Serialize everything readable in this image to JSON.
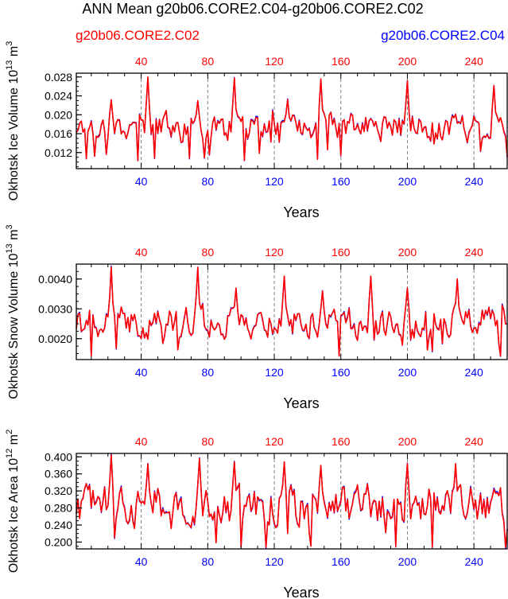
{
  "title": "ANN Mean g20b06.CORE2.C04-g20b06.CORE2.C02",
  "case_left": "g20b06.CORE2.C02",
  "case_right": "g20b06.CORE2.C04",
  "colors": {
    "red": "#ff0000",
    "blue": "#0000ff",
    "black": "#000000",
    "grid": "#808080"
  },
  "chart_data": [
    {
      "type": "line",
      "ylabel_main": "Okhotsk Ice Volume 10",
      "ylabel_exp": "13",
      "ylabel_unit": "m",
      "ylabel_unit_exp": "3",
      "xlabel": "Years",
      "xlim": [
        1,
        260
      ],
      "ylim": [
        0.0086,
        0.0288
      ],
      "yticks": [
        0.012,
        0.016,
        0.02,
        0.024,
        0.028
      ],
      "ytick_labels": [
        "0.012",
        "0.016",
        "0.020",
        "0.024",
        "0.028"
      ],
      "xticks": [
        40,
        80,
        120,
        160,
        200,
        240
      ],
      "xtick_labels": [
        "40",
        "80",
        "120",
        "160",
        "200",
        "240"
      ],
      "vlines": [
        40,
        80,
        120,
        160,
        200,
        240
      ],
      "stats": {
        "mean": 0.0175,
        "amp": 0.0025,
        "min": 0.0088,
        "max": 0.0282,
        "seed": 17,
        "peaks": [
          [
            44,
            0.028
          ],
          [
            96,
            0.0278
          ],
          [
            148,
            0.0276
          ],
          [
            200,
            0.0272
          ],
          [
            252,
            0.0262
          ],
          [
            22,
            0.0232
          ],
          [
            74,
            0.023
          ],
          [
            128,
            0.0232
          ]
        ]
      },
      "series": [
        {
          "name": "g20b06.CORE2.C04",
          "color": "#0000ff"
        },
        {
          "name": "g20b06.CORE2.C02",
          "color": "#ff0000"
        }
      ]
    },
    {
      "type": "line",
      "ylabel_main": "Okhotsk Snow Volume 10",
      "ylabel_exp": "13",
      "ylabel_unit": "m",
      "ylabel_unit_exp": "3",
      "xlabel": "Years",
      "xlim": [
        1,
        260
      ],
      "ylim": [
        0.0013,
        0.0045
      ],
      "yticks": [
        0.002,
        0.003,
        0.004
      ],
      "ytick_labels": [
        "0.0020",
        "0.0030",
        "0.0040"
      ],
      "xticks": [
        40,
        80,
        120,
        160,
        200,
        240
      ],
      "xtick_labels": [
        "40",
        "80",
        "120",
        "160",
        "200",
        "240"
      ],
      "vlines": [
        40,
        80,
        120,
        160,
        200,
        240
      ],
      "stats": {
        "mean": 0.00255,
        "amp": 0.00045,
        "min": 0.00142,
        "max": 0.00448,
        "seed": 41,
        "peaks": [
          [
            22,
            0.0044
          ],
          [
            74,
            0.0044
          ],
          [
            126,
            0.0041
          ],
          [
            178,
            0.0041
          ],
          [
            230,
            0.004
          ],
          [
            97,
            0.0037
          ],
          [
            149,
            0.0036
          ],
          [
            200,
            0.0037
          ]
        ]
      },
      "series": [
        {
          "name": "g20b06.CORE2.C04",
          "color": "#0000ff"
        },
        {
          "name": "g20b06.CORE2.C02",
          "color": "#ff0000"
        }
      ]
    },
    {
      "type": "line",
      "ylabel_main": "Okhotsk Ice Area 10",
      "ylabel_exp": "12",
      "ylabel_unit": "m",
      "ylabel_unit_exp": "2",
      "xlabel": "Years",
      "xlim": [
        1,
        260
      ],
      "ylim": [
        0.184,
        0.408
      ],
      "yticks": [
        0.2,
        0.24,
        0.28,
        0.32,
        0.36,
        0.4
      ],
      "ytick_labels": [
        "0.200",
        "0.240",
        "0.280",
        "0.320",
        "0.360",
        "0.400"
      ],
      "xticks": [
        40,
        80,
        120,
        160,
        200,
        240
      ],
      "xtick_labels": [
        "40",
        "80",
        "120",
        "160",
        "200",
        "240"
      ],
      "vlines": [
        40,
        80,
        120,
        160,
        200,
        240
      ],
      "stats": {
        "mean": 0.285,
        "amp": 0.04,
        "min": 0.188,
        "max": 0.404,
        "seed": 73,
        "peaks": [
          [
            22,
            0.404
          ],
          [
            75,
            0.396
          ],
          [
            96,
            0.388
          ],
          [
            126,
            0.388
          ],
          [
            148,
            0.38
          ],
          [
            200,
            0.384
          ],
          [
            229,
            0.384
          ],
          [
            44,
            0.384
          ]
        ]
      },
      "series": [
        {
          "name": "g20b06.CORE2.C04",
          "color": "#0000ff"
        },
        {
          "name": "g20b06.CORE2.C02",
          "color": "#ff0000"
        }
      ]
    }
  ]
}
